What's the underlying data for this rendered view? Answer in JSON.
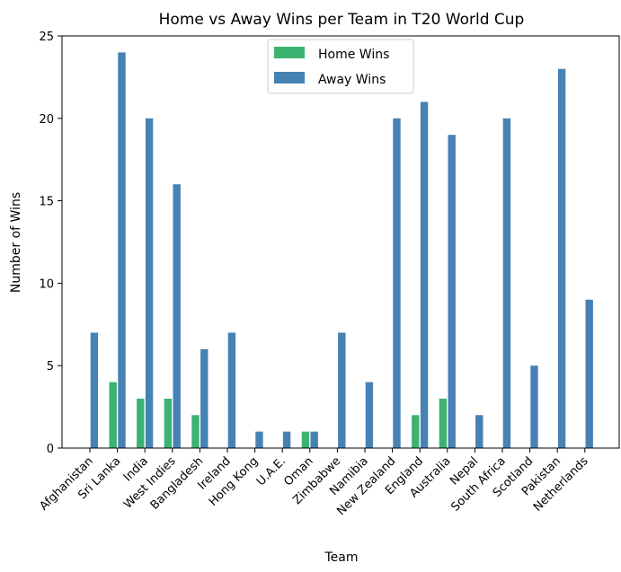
{
  "chart_data": {
    "type": "bar",
    "title": "Home vs Away Wins per Team in T20 World Cup",
    "xlabel": "Team",
    "ylabel": "Number of Wins",
    "ylim": [
      0,
      25
    ],
    "yticks": [
      0,
      5,
      10,
      15,
      20,
      25
    ],
    "grid": false,
    "legend_position": "top-center",
    "categories": [
      "Afghanistan",
      "Sri Lanka",
      "India",
      "West Indies",
      "Bangladesh",
      "Ireland",
      "Hong Kong",
      "U.A.E.",
      "Oman",
      "Zimbabwe",
      "Namibia",
      "New Zealand",
      "England",
      "Australia",
      "Nepal",
      "South Africa",
      "Scotland",
      "Pakistan",
      "Netherlands"
    ],
    "series": [
      {
        "name": "Home Wins",
        "color": "#3cb371",
        "values": [
          0,
          4,
          3,
          3,
          2,
          0,
          0,
          0,
          1,
          0,
          0,
          0,
          2,
          3,
          0,
          0,
          0,
          0,
          0
        ]
      },
      {
        "name": "Away Wins",
        "color": "#4682b4",
        "values": [
          7,
          24,
          20,
          16,
          6,
          7,
          1,
          1,
          1,
          7,
          4,
          20,
          21,
          19,
          2,
          20,
          5,
          23,
          9
        ]
      }
    ]
  }
}
